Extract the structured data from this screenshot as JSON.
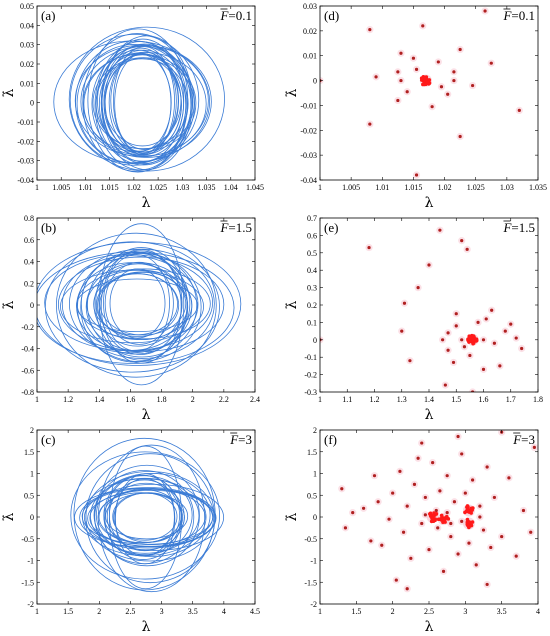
{
  "chart_data": [
    {
      "panel": "(a)",
      "type": "line",
      "force_label": "=0.1",
      "xlabel": "λ",
      "ylabel": "λ̇",
      "xlim": [
        1,
        1.045
      ],
      "ylim": [
        -0.04,
        0.05
      ],
      "xticks": [
        "1",
        "1.005",
        "1.01",
        "1.015",
        "1.02",
        "1.025",
        "1.03",
        "1.035",
        "1.04",
        "1.045"
      ],
      "yticks": [
        "-0.04",
        "-0.03",
        "-0.02",
        "-0.01",
        "0",
        "0.01",
        "0.02",
        "0.03",
        "0.04",
        "0.05"
      ],
      "center": [
        1.0215,
        0.0
      ],
      "rx_range": [
        0.004,
        0.02
      ],
      "ry_range": [
        0.02,
        0.04
      ],
      "color": "#3a7bd5"
    },
    {
      "panel": "(d)",
      "type": "scatter",
      "force_label": "=0.1",
      "xlabel": "λ",
      "ylabel": "λ̇",
      "xlim": [
        1,
        1.035
      ],
      "ylim": [
        -0.04,
        0.03
      ],
      "xticks": [
        "1",
        "1.005",
        "1.01",
        "1.015",
        "1.02",
        "1.025",
        "1.03",
        "1.035"
      ],
      "yticks": [
        "-0.04",
        "-0.03",
        "-0.02",
        "-0.01",
        "0",
        "0.01",
        "0.02",
        "0.03"
      ],
      "points": [
        [
          1.0,
          0.0
        ],
        [
          1.008,
          0.0205
        ],
        [
          1.008,
          -0.0175
        ],
        [
          1.009,
          0.0015
        ],
        [
          1.013,
          0.011
        ],
        [
          1.0125,
          -0.008
        ],
        [
          1.0155,
          -0.038
        ],
        [
          1.0165,
          0.022
        ],
        [
          1.0225,
          -0.0225
        ],
        [
          1.0265,
          0.028
        ],
        [
          1.0275,
          0.007
        ],
        [
          1.032,
          -0.012
        ],
        [
          1.0225,
          0.0125
        ],
        [
          1.015,
          0.009
        ],
        [
          1.0125,
          0.0035
        ],
        [
          1.019,
          0.0075
        ],
        [
          1.0205,
          -0.0055
        ],
        [
          1.0215,
          0.0035
        ],
        [
          1.0245,
          -0.002
        ],
        [
          1.018,
          -0.0105
        ],
        [
          1.014,
          -0.0045
        ],
        [
          1.0155,
          0.0045
        ],
        [
          1.0195,
          -0.0025
        ],
        [
          1.013,
          0.0
        ],
        [
          1.0215,
          0.0
        ]
      ],
      "cluster": {
        "x": 1.017,
        "y": 0.0,
        "count": 40
      },
      "color": "#b02020",
      "cluster_color": "#ff1a1a"
    },
    {
      "panel": "(b)",
      "type": "line",
      "force_label": "=1.5",
      "xlabel": "λ",
      "ylabel": "λ̇",
      "xlim": [
        1,
        2.4
      ],
      "ylim": [
        -0.8,
        0.8
      ],
      "xticks": [
        "1",
        "1.2",
        "1.4",
        "1.6",
        "1.8",
        "2",
        "2.2",
        "2.4"
      ],
      "yticks": [
        "-0.8",
        "-0.6",
        "-0.4",
        "-0.2",
        "0",
        "0.2",
        "0.4",
        "0.6",
        "0.8"
      ],
      "center": [
        1.65,
        0.0
      ],
      "rx_range": [
        0.13,
        0.73
      ],
      "ry_range": [
        0.18,
        0.75
      ],
      "color": "#3a7bd5"
    },
    {
      "panel": "(e)",
      "type": "scatter",
      "force_label": "=1.5",
      "xlabel": "λ",
      "ylabel": "λ̇",
      "xlim": [
        1,
        1.8
      ],
      "ylim": [
        -0.3,
        0.7
      ],
      "xticks": [
        "1",
        "1.1",
        "1.2",
        "1.3",
        "1.4",
        "1.5",
        "1.6",
        "1.7",
        "1.8"
      ],
      "yticks": [
        "-0.3",
        "-0.2",
        "-0.1",
        "0",
        "0.1",
        "0.2",
        "0.3",
        "0.4",
        "0.5",
        "0.6",
        "0.7"
      ],
      "points": [
        [
          1.0,
          0.0
        ],
        [
          1.18,
          0.53
        ],
        [
          1.31,
          0.21
        ],
        [
          1.3,
          0.05
        ],
        [
          1.33,
          -0.12
        ],
        [
          1.36,
          0.3
        ],
        [
          1.4,
          0.43
        ],
        [
          1.44,
          0.63
        ],
        [
          1.46,
          -0.26
        ],
        [
          1.5,
          0.15
        ],
        [
          1.52,
          0.57
        ],
        [
          1.54,
          0.52
        ],
        [
          1.56,
          -0.3
        ],
        [
          1.63,
          0.17
        ],
        [
          1.7,
          0.09
        ],
        [
          1.72,
          0.01
        ],
        [
          1.74,
          -0.05
        ],
        [
          1.66,
          -0.15
        ],
        [
          1.6,
          -0.17
        ],
        [
          1.49,
          -0.13
        ],
        [
          1.47,
          0.04
        ],
        [
          1.5,
          0.08
        ],
        [
          1.53,
          -0.04
        ],
        [
          1.47,
          -0.06
        ],
        [
          1.61,
          0.12
        ],
        [
          1.64,
          -0.02
        ],
        [
          1.55,
          -0.09
        ],
        [
          1.58,
          0.1
        ],
        [
          1.68,
          0.05
        ],
        [
          1.45,
          0.0
        ],
        [
          1.52,
          0.0
        ],
        [
          1.6,
          0.0
        ]
      ],
      "cluster": {
        "x": 1.56,
        "y": 0.0,
        "count": 40
      },
      "color": "#b02020",
      "cluster_color": "#ff1a1a"
    },
    {
      "panel": "(c)",
      "type": "line",
      "force_label": "=3",
      "xlabel": "λ",
      "ylabel": "λ̇",
      "xlim": [
        1,
        4.5
      ],
      "ylim": [
        -2,
        2
      ],
      "xticks": [
        "1",
        "1.5",
        "2",
        "2.5",
        "3",
        "3.5",
        "4",
        "4.5"
      ],
      "yticks": [
        "-2",
        "-1.5",
        "-1",
        "-0.5",
        "0",
        "0.5",
        "1",
        "1.5",
        "2"
      ],
      "center": [
        2.75,
        0.0
      ],
      "rx_range": [
        0.3,
        1.65
      ],
      "ry_range": [
        0.35,
        1.95
      ],
      "color": "#3a7bd5"
    },
    {
      "panel": "(f)",
      "type": "scatter",
      "force_label": "=3",
      "xlabel": "λ",
      "ylabel": "λ̇",
      "xlim": [
        1,
        4
      ],
      "ylim": [
        -2,
        2
      ],
      "xticks": [
        "1",
        "1.5",
        "2",
        "2.5",
        "3",
        "3.5",
        "4"
      ],
      "yticks": [
        "-2",
        "-1.5",
        "-1",
        "-0.5",
        "0",
        "0.5",
        "1",
        "1.5",
        "2"
      ],
      "points": [
        [
          1.3,
          0.65
        ],
        [
          1.35,
          -0.25
        ],
        [
          1.45,
          0.1
        ],
        [
          1.6,
          0.2
        ],
        [
          1.7,
          -0.55
        ],
        [
          1.75,
          0.95
        ],
        [
          1.8,
          0.35
        ],
        [
          1.85,
          -0.65
        ],
        [
          1.95,
          -0.05
        ],
        [
          2.0,
          0.55
        ],
        [
          2.05,
          -1.45
        ],
        [
          2.1,
          1.05
        ],
        [
          2.15,
          -0.35
        ],
        [
          2.2,
          0.25
        ],
        [
          2.25,
          -0.95
        ],
        [
          2.3,
          0.75
        ],
        [
          2.35,
          1.35
        ],
        [
          2.4,
          -0.15
        ],
        [
          2.45,
          0.45
        ],
        [
          2.5,
          -0.75
        ],
        [
          2.55,
          1.25
        ],
        [
          2.6,
          0.15
        ],
        [
          2.62,
          -0.25
        ],
        [
          2.65,
          0.6
        ],
        [
          2.7,
          -1.25
        ],
        [
          2.75,
          0.95
        ],
        [
          2.8,
          -0.45
        ],
        [
          2.85,
          0.35
        ],
        [
          2.9,
          -0.85
        ],
        [
          2.95,
          1.45
        ],
        [
          3.0,
          0.55
        ],
        [
          3.05,
          -0.6
        ],
        [
          3.1,
          0.85
        ],
        [
          3.15,
          -1.1
        ],
        [
          3.2,
          0.25
        ],
        [
          3.25,
          -0.3
        ],
        [
          3.3,
          1.15
        ],
        [
          3.35,
          -0.7
        ],
        [
          3.4,
          0.45
        ],
        [
          3.5,
          -0.45
        ],
        [
          3.6,
          0.9
        ],
        [
          3.7,
          -0.9
        ],
        [
          3.8,
          0.15
        ],
        [
          3.9,
          -0.35
        ],
        [
          3.95,
          1.6
        ],
        [
          2.9,
          1.85
        ],
        [
          2.4,
          1.7
        ],
        [
          2.2,
          -1.65
        ],
        [
          3.5,
          1.95
        ],
        [
          3.3,
          -1.55
        ],
        [
          2.45,
          0.05
        ],
        [
          2.55,
          -0.05
        ],
        [
          2.75,
          0.1
        ],
        [
          2.8,
          -0.15
        ],
        [
          3.05,
          0.15
        ],
        [
          2.95,
          -0.1
        ],
        [
          3.2,
          0.0
        ]
      ],
      "clusters": [
        {
          "x": 2.55,
          "y": 0.0,
          "count": 20
        },
        {
          "x": 2.7,
          "y": -0.05,
          "count": 18
        },
        {
          "x": 3.05,
          "y": 0.15,
          "count": 16
        },
        {
          "x": 3.05,
          "y": -0.15,
          "count": 14
        }
      ],
      "color": "#b02020",
      "cluster_color": "#ff1a1a"
    }
  ]
}
